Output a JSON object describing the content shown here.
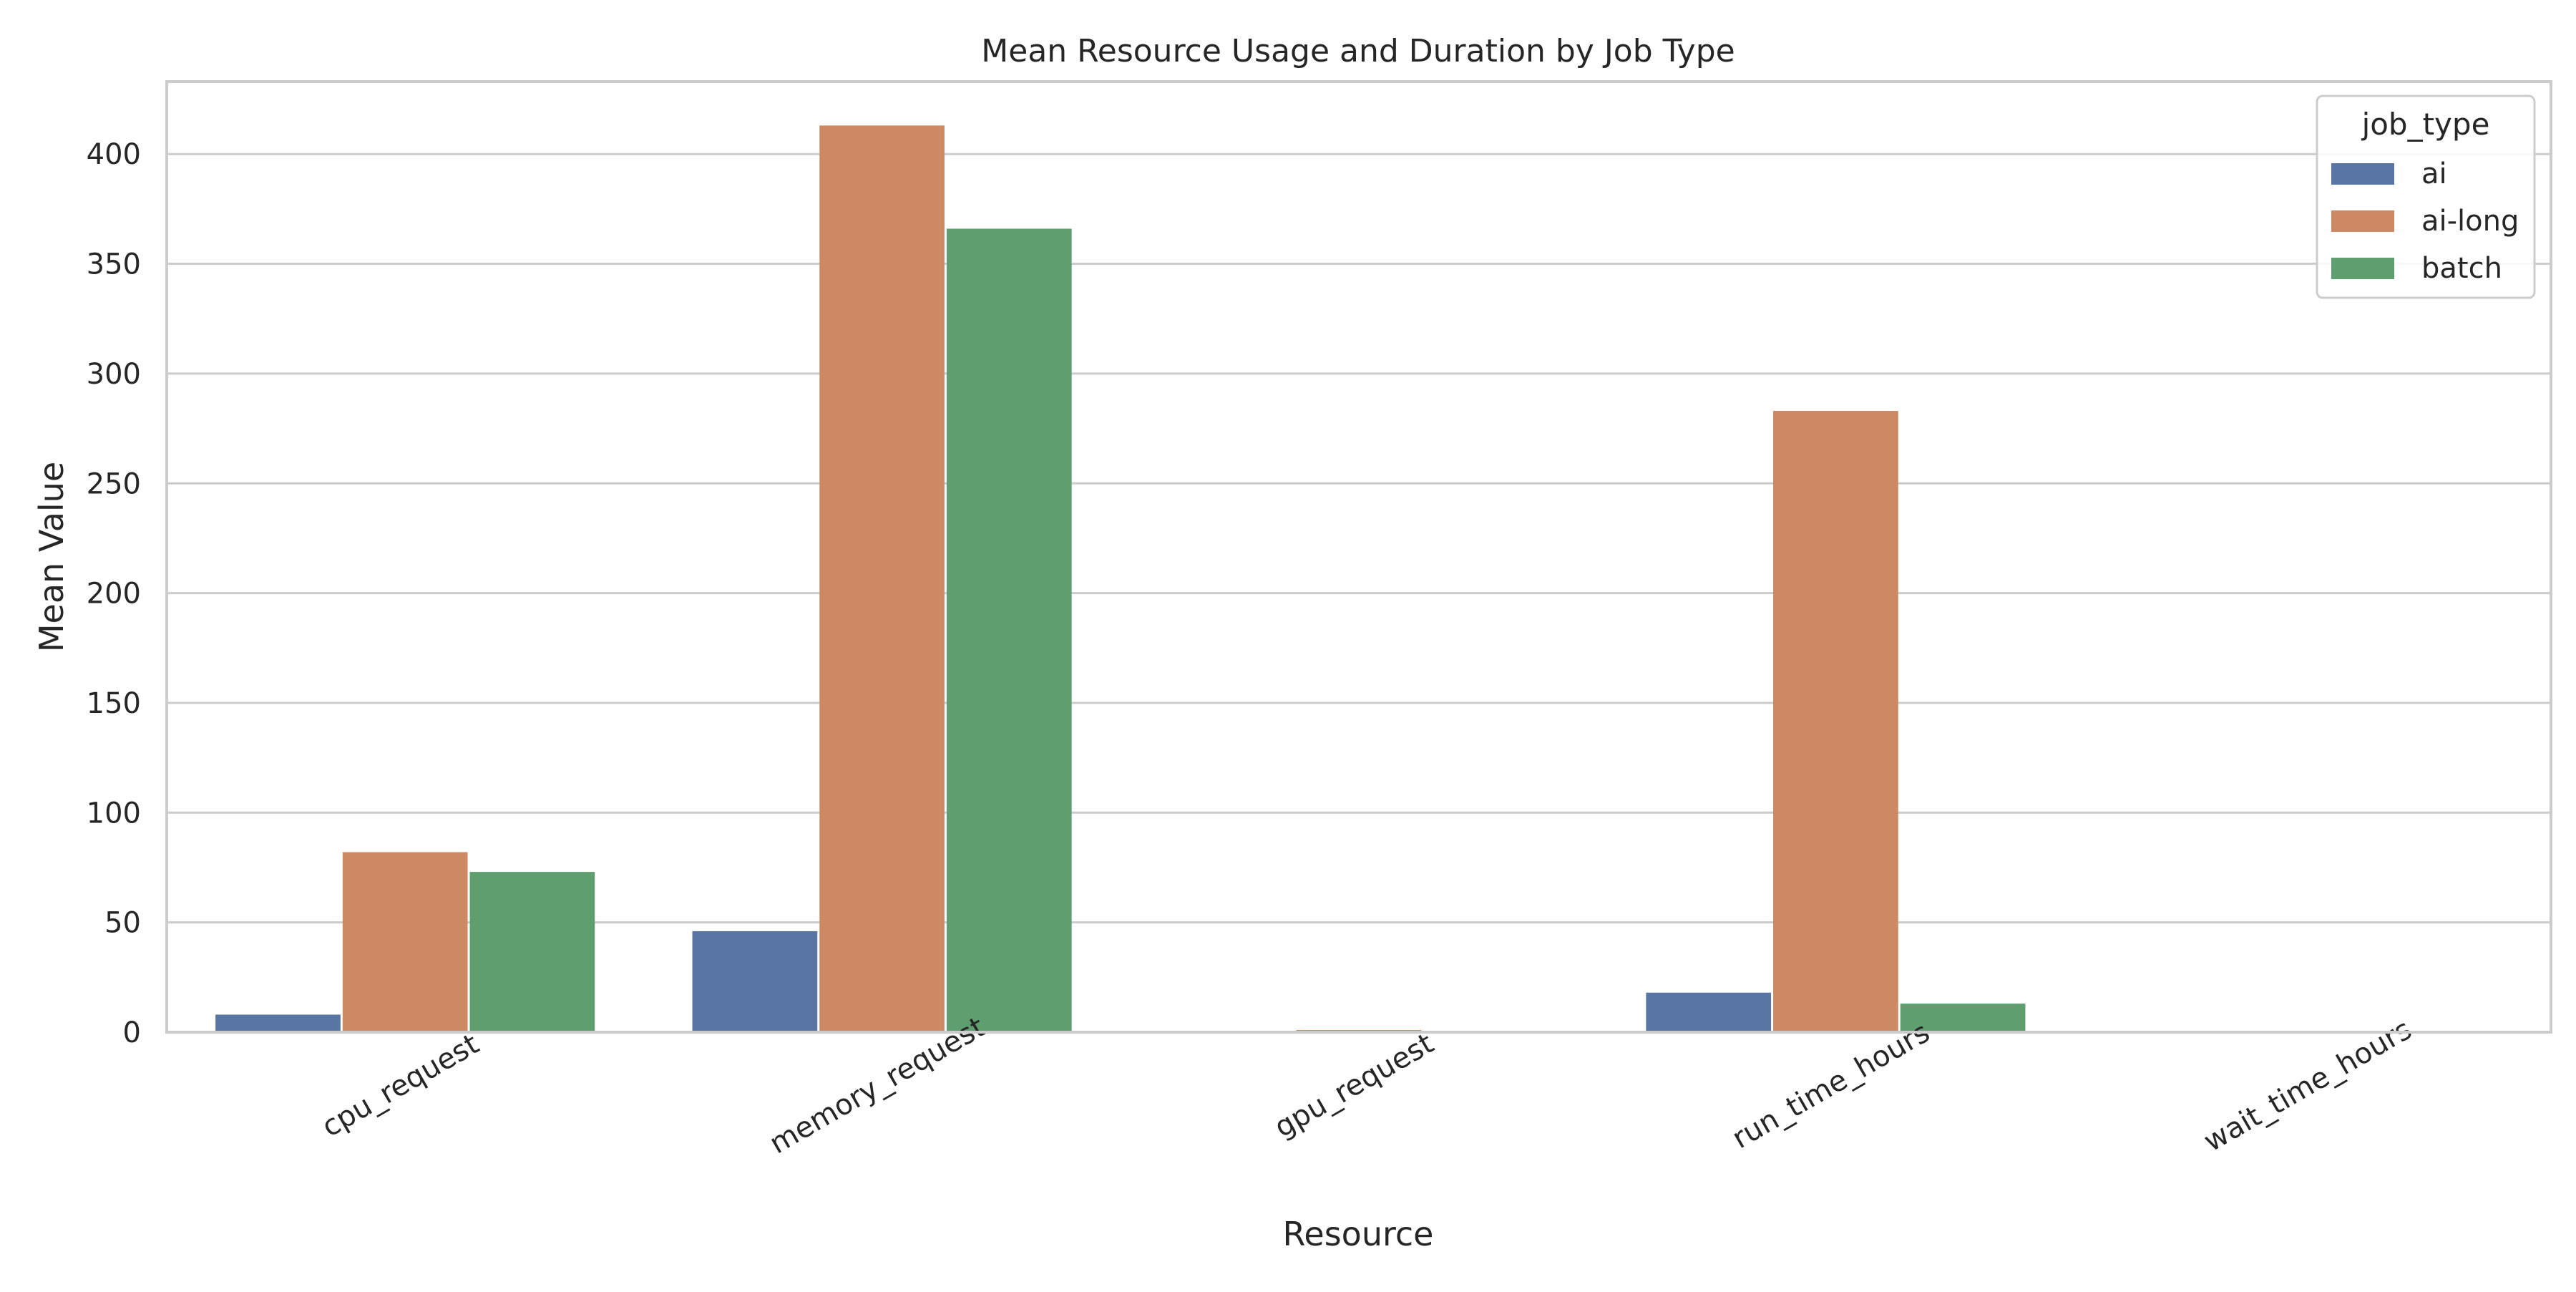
{
  "chart_data": {
    "type": "bar",
    "title": "Mean Resource Usage and Duration by Job Type",
    "xlabel": "Resource",
    "ylabel": "Mean Value",
    "categories": [
      "cpu_request",
      "memory_request",
      "gpu_request",
      "run_time_hours",
      "wait_time_hours"
    ],
    "series": [
      {
        "name": "ai",
        "color": "#5875a4",
        "values": [
          8,
          46,
          0.3,
          18,
          0.05
        ]
      },
      {
        "name": "ai-long",
        "color": "#cc8963",
        "values": [
          82,
          413,
          1.0,
          283,
          0.1
        ]
      },
      {
        "name": "batch",
        "color": "#5f9e6e",
        "values": [
          73,
          366,
          0.0,
          13,
          0.02
        ]
      }
    ],
    "ylim": [
      0,
      433
    ],
    "yticks": [
      0,
      50,
      100,
      150,
      200,
      250,
      300,
      350,
      400
    ],
    "grid": "horizontal",
    "legend": {
      "title": "job_type",
      "placement": "top-right"
    }
  }
}
